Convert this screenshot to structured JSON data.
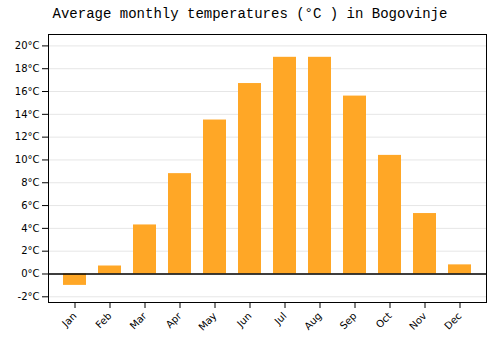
{
  "chart_data": {
    "type": "bar",
    "title": "Average monthly temperatures (°C ) in Bogovinje",
    "categories": [
      "Jan",
      "Feb",
      "Mar",
      "Apr",
      "May",
      "Jun",
      "Jul",
      "Aug",
      "Sep",
      "Oct",
      "Nov",
      "Dec"
    ],
    "values": [
      -1.0,
      0.7,
      4.3,
      8.8,
      13.5,
      16.7,
      19.0,
      19.0,
      15.6,
      10.4,
      5.3,
      0.8
    ],
    "color": "#FFA726",
    "ylim": [
      -2.5,
      21
    ],
    "yticks": [
      {
        "value": -2,
        "label": "-2°C"
      },
      {
        "value": 0,
        "label": "0°C"
      },
      {
        "value": 2,
        "label": "2°C"
      },
      {
        "value": 4,
        "label": "4°C"
      },
      {
        "value": 6,
        "label": "6°C"
      },
      {
        "value": 8,
        "label": "8°C"
      },
      {
        "value": 10,
        "label": "10°C"
      },
      {
        "value": 12,
        "label": "12°C"
      },
      {
        "value": 14,
        "label": "14°C"
      },
      {
        "value": 16,
        "label": "16°C"
      },
      {
        "value": 18,
        "label": "18°C"
      },
      {
        "value": 20,
        "label": "20°C"
      }
    ],
    "grid": true
  }
}
